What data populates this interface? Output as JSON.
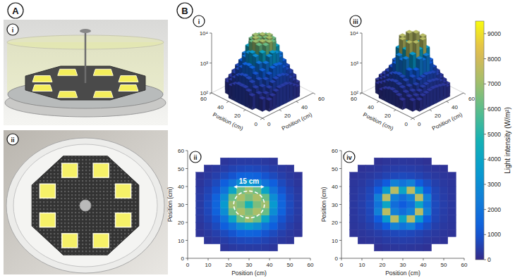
{
  "figure_labels": {
    "a": "A",
    "a_images": [
      "i",
      "ii"
    ],
    "b": "B"
  },
  "colorbar": {
    "label": "Light intensity (W/m²)",
    "lim": [
      0,
      9500
    ],
    "ticks": [
      0,
      1000,
      2000,
      3000,
      4000,
      5000,
      6000,
      7000,
      8000,
      9000
    ]
  },
  "chart_data": [
    {
      "type": "surface",
      "title": "i",
      "log": true,
      "xlabel": "Position (cm)",
      "ylabel": "Position (cm)",
      "xlim": [
        0,
        60
      ],
      "xticks": [
        0,
        20,
        40,
        60
      ],
      "ylim": [
        0,
        60
      ],
      "yticks": [
        0,
        20,
        40,
        60
      ],
      "zlim": [
        100,
        10000
      ],
      "zticks": [
        {
          "value": 100,
          "label": "10²"
        },
        {
          "value": 1000,
          "label": "10³"
        },
        {
          "value": 10000,
          "label": "10⁴"
        }
      ],
      "x": [
        6,
        10,
        14,
        18,
        22,
        26,
        30,
        34,
        38,
        42,
        46,
        50,
        54
      ],
      "y": [
        6,
        10,
        14,
        18,
        22,
        26,
        30,
        34,
        38,
        42,
        46,
        50,
        54
      ],
      "cells": [
        [
          null,
          null,
          null,
          280,
          350,
          400,
          400,
          400,
          350,
          280,
          null,
          null,
          null
        ],
        [
          null,
          250,
          330,
          450,
          600,
          700,
          750,
          700,
          600,
          450,
          330,
          250,
          null
        ],
        [
          230,
          330,
          500,
          750,
          1000,
          1400,
          1500,
          1400,
          1000,
          750,
          500,
          330,
          230
        ],
        [
          280,
          450,
          750,
          1300,
          2000,
          3000,
          3500,
          3000,
          2000,
          1300,
          750,
          450,
          280
        ],
        [
          350,
          600,
          1000,
          2000,
          4000,
          6200,
          7000,
          6200,
          4000,
          2000,
          1000,
          600,
          350
        ],
        [
          400,
          700,
          1400,
          3000,
          6200,
          7200,
          6500,
          7200,
          6200,
          3000,
          1400,
          700,
          400
        ],
        [
          400,
          750,
          1500,
          3500,
          7000,
          6500,
          4800,
          6500,
          7000,
          3500,
          1500,
          750,
          400
        ],
        [
          400,
          700,
          1400,
          3000,
          6200,
          7200,
          6500,
          7200,
          6200,
          3000,
          1400,
          700,
          400
        ],
        [
          350,
          600,
          1000,
          2000,
          4000,
          6200,
          7000,
          6200,
          4000,
          2000,
          1000,
          600,
          350
        ],
        [
          280,
          450,
          750,
          1300,
          2000,
          3000,
          3500,
          3000,
          2000,
          1300,
          750,
          450,
          280
        ],
        [
          230,
          330,
          500,
          750,
          1000,
          1400,
          1500,
          1400,
          1000,
          750,
          500,
          330,
          230
        ],
        [
          null,
          250,
          330,
          450,
          600,
          700,
          750,
          700,
          600,
          450,
          330,
          250,
          null
        ],
        [
          null,
          null,
          null,
          280,
          350,
          400,
          400,
          400,
          350,
          280,
          null,
          null,
          null
        ]
      ]
    },
    {
      "type": "heatmap",
      "title": "ii",
      "xlabel": "Position (cm)",
      "ylabel": "Position (cm)",
      "xlim": [
        0,
        60
      ],
      "xticks": [
        0,
        10,
        20,
        30,
        40,
        50,
        60
      ],
      "ylim": [
        0,
        60
      ],
      "yticks": [
        0,
        10,
        20,
        30,
        40,
        50,
        60
      ],
      "x": [
        6,
        10,
        14,
        18,
        22,
        26,
        30,
        34,
        38,
        42,
        46,
        50,
        54
      ],
      "y": [
        6,
        10,
        14,
        18,
        22,
        26,
        30,
        34,
        38,
        42,
        46,
        50,
        54
      ],
      "cells": [
        [
          null,
          null,
          null,
          280,
          350,
          400,
          400,
          400,
          350,
          280,
          null,
          null,
          null
        ],
        [
          null,
          250,
          330,
          450,
          600,
          700,
          750,
          700,
          600,
          450,
          330,
          250,
          null
        ],
        [
          230,
          330,
          500,
          750,
          1000,
          1400,
          1500,
          1400,
          1000,
          750,
          500,
          330,
          230
        ],
        [
          280,
          450,
          750,
          1300,
          2000,
          3000,
          3500,
          3000,
          2000,
          1300,
          750,
          450,
          280
        ],
        [
          350,
          600,
          1000,
          2000,
          4000,
          6200,
          7000,
          6200,
          4000,
          2000,
          1000,
          600,
          350
        ],
        [
          400,
          700,
          1400,
          3000,
          6200,
          7200,
          6500,
          7200,
          6200,
          3000,
          1400,
          700,
          400
        ],
        [
          400,
          750,
          1500,
          3500,
          7000,
          6500,
          4800,
          6500,
          7000,
          3500,
          1500,
          750,
          400
        ],
        [
          400,
          700,
          1400,
          3000,
          6200,
          7200,
          6500,
          7200,
          6200,
          3000,
          1400,
          700,
          400
        ],
        [
          350,
          600,
          1000,
          2000,
          4000,
          6200,
          7000,
          6200,
          4000,
          2000,
          1000,
          600,
          350
        ],
        [
          280,
          450,
          750,
          1300,
          2000,
          3000,
          3500,
          3000,
          2000,
          1300,
          750,
          450,
          280
        ],
        [
          230,
          330,
          500,
          750,
          1000,
          1400,
          1500,
          1400,
          1000,
          750,
          500,
          330,
          230
        ],
        [
          null,
          250,
          330,
          450,
          600,
          700,
          750,
          700,
          600,
          450,
          330,
          250,
          null
        ],
        [
          null,
          null,
          null,
          280,
          350,
          400,
          400,
          400,
          350,
          280,
          null,
          null,
          null
        ]
      ],
      "annotation": {
        "text": "15 cm",
        "center": [
          30,
          30
        ],
        "diameter": 15
      }
    },
    {
      "type": "surface",
      "title": "iii",
      "log": true,
      "xlabel": "Position (cm)",
      "ylabel": "Position (cm)",
      "xlim": [
        0,
        60
      ],
      "xticks": [
        0,
        20,
        40,
        60
      ],
      "ylim": [
        0,
        60
      ],
      "yticks": [
        0,
        20,
        40,
        60
      ],
      "zlim": [
        100,
        10000
      ],
      "zticks": [
        {
          "value": 100,
          "label": "10²"
        },
        {
          "value": 1000,
          "label": "10³"
        },
        {
          "value": 10000,
          "label": "10⁴"
        }
      ],
      "x": [
        6,
        10,
        14,
        18,
        22,
        26,
        30,
        34,
        38,
        42,
        46,
        50,
        54
      ],
      "y": [
        6,
        10,
        14,
        18,
        22,
        26,
        30,
        34,
        38,
        42,
        46,
        50,
        54
      ],
      "cells": [
        [
          null,
          null,
          null,
          200,
          250,
          280,
          300,
          280,
          250,
          200,
          null,
          null,
          null
        ],
        [
          null,
          220,
          260,
          320,
          400,
          450,
          480,
          450,
          400,
          320,
          260,
          220,
          null
        ],
        [
          230,
          280,
          350,
          450,
          600,
          700,
          750,
          700,
          600,
          450,
          350,
          280,
          230
        ],
        [
          280,
          350,
          500,
          800,
          1200,
          2500,
          2000,
          2500,
          1200,
          800,
          500,
          350,
          280
        ],
        [
          300,
          420,
          650,
          1200,
          3500,
          7500,
          4000,
          7500,
          3500,
          1200,
          650,
          420,
          300
        ],
        [
          320,
          450,
          700,
          2500,
          7500,
          2500,
          1800,
          2500,
          7500,
          2500,
          700,
          450,
          320
        ],
        [
          330,
          480,
          750,
          2000,
          4000,
          1800,
          1200,
          1800,
          4000,
          2000,
          750,
          480,
          330
        ],
        [
          320,
          450,
          700,
          2500,
          7500,
          2500,
          1800,
          2500,
          7500,
          2500,
          700,
          450,
          320
        ],
        [
          300,
          420,
          650,
          1200,
          3500,
          7500,
          4000,
          7500,
          3500,
          1200,
          650,
          420,
          300
        ],
        [
          280,
          350,
          500,
          800,
          1200,
          2500,
          2000,
          2500,
          1200,
          800,
          500,
          350,
          280
        ],
        [
          230,
          280,
          350,
          450,
          600,
          700,
          750,
          700,
          600,
          450,
          350,
          280,
          230
        ],
        [
          null,
          220,
          260,
          320,
          400,
          450,
          480,
          450,
          400,
          320,
          260,
          220,
          null
        ],
        [
          null,
          null,
          null,
          200,
          250,
          280,
          300,
          280,
          250,
          200,
          null,
          null,
          null
        ]
      ]
    },
    {
      "type": "heatmap",
      "title": "iv",
      "xlabel": "Position (cm)",
      "ylabel": "Position (cm)",
      "xlim": [
        0,
        60
      ],
      "xticks": [
        0,
        10,
        20,
        30,
        40,
        50,
        60
      ],
      "ylim": [
        0,
        60
      ],
      "yticks": [
        0,
        10,
        20,
        30,
        40,
        50,
        60
      ],
      "x": [
        6,
        10,
        14,
        18,
        22,
        26,
        30,
        34,
        38,
        42,
        46,
        50,
        54
      ],
      "y": [
        6,
        10,
        14,
        18,
        22,
        26,
        30,
        34,
        38,
        42,
        46,
        50,
        54
      ],
      "cells": [
        [
          null,
          null,
          null,
          200,
          250,
          280,
          300,
          280,
          250,
          200,
          null,
          null,
          null
        ],
        [
          null,
          220,
          260,
          320,
          400,
          450,
          480,
          450,
          400,
          320,
          260,
          220,
          null
        ],
        [
          230,
          280,
          350,
          450,
          600,
          700,
          750,
          700,
          600,
          450,
          350,
          280,
          230
        ],
        [
          280,
          350,
          500,
          800,
          1200,
          2500,
          2000,
          2500,
          1200,
          800,
          500,
          350,
          280
        ],
        [
          300,
          420,
          650,
          1200,
          3500,
          7500,
          4000,
          7500,
          3500,
          1200,
          650,
          420,
          300
        ],
        [
          320,
          450,
          700,
          2500,
          7500,
          2500,
          1800,
          2500,
          7500,
          2500,
          700,
          450,
          320
        ],
        [
          330,
          480,
          750,
          2000,
          4000,
          1800,
          1200,
          1800,
          4000,
          2000,
          750,
          480,
          330
        ],
        [
          320,
          450,
          700,
          2500,
          7500,
          2500,
          1800,
          2500,
          7500,
          2500,
          700,
          450,
          320
        ],
        [
          300,
          420,
          650,
          1200,
          3500,
          7500,
          4000,
          7500,
          3500,
          1200,
          650,
          420,
          300
        ],
        [
          280,
          350,
          500,
          800,
          1200,
          2500,
          2000,
          2500,
          1200,
          800,
          500,
          350,
          280
        ],
        [
          230,
          280,
          350,
          450,
          600,
          700,
          750,
          700,
          600,
          450,
          350,
          280,
          230
        ],
        [
          null,
          220,
          260,
          320,
          400,
          450,
          480,
          450,
          400,
          320,
          260,
          220,
          null
        ],
        [
          null,
          null,
          null,
          200,
          250,
          280,
          300,
          280,
          250,
          200,
          null,
          null,
          null
        ]
      ]
    }
  ]
}
